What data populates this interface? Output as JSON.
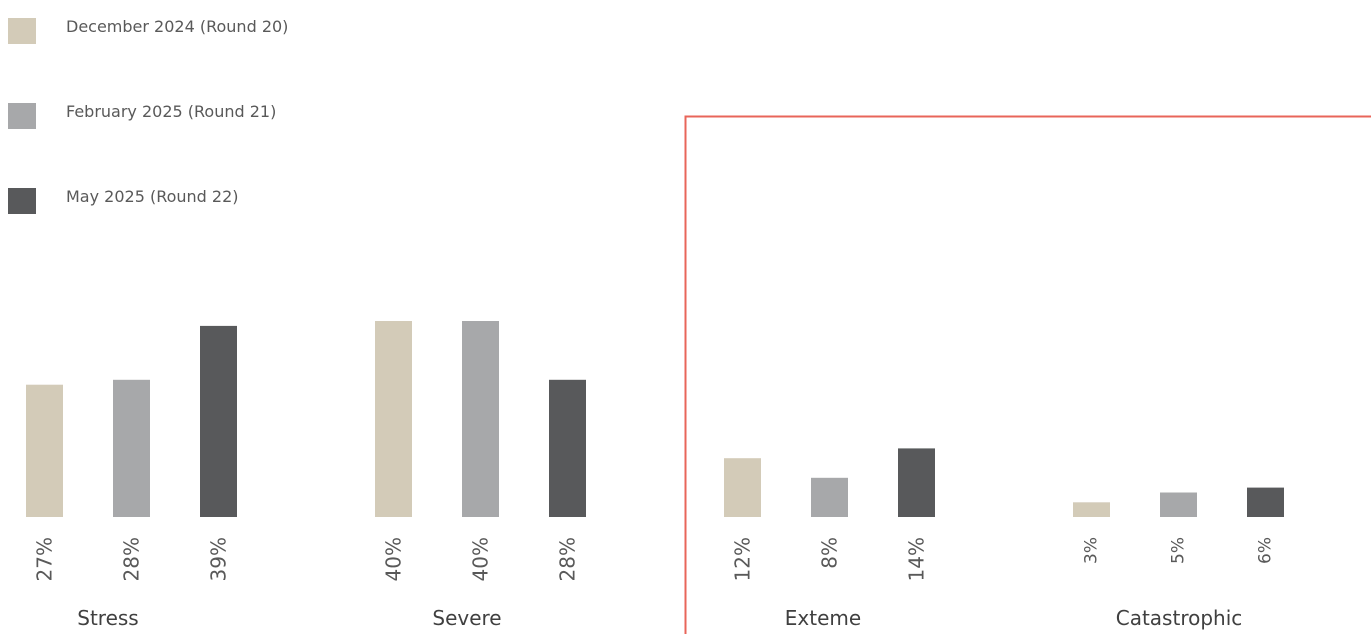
{
  "chart_data": {
    "type": "bar",
    "categories": [
      "Stress",
      "Severe",
      "Exteme",
      "Catastrophic"
    ],
    "series": [
      {
        "name": "December 2024 (Round 20)",
        "color": "#d3cbb8",
        "values": [
          27,
          40,
          12,
          3
        ]
      },
      {
        "name": "February 2025 (Round 21)",
        "color": "#a7a8aa",
        "values": [
          28,
          40,
          8,
          5
        ]
      },
      {
        "name": "May 2025 (Round 22)",
        "color": "#58595b",
        "values": [
          39,
          28,
          14,
          6
        ]
      }
    ],
    "value_suffix": "%",
    "value_labels": [
      [
        "27%",
        "40%",
        "12%",
        "3%"
      ],
      [
        "28%",
        "40%",
        "8%",
        "5%"
      ],
      [
        "39%",
        "28%",
        "14%",
        "6%"
      ]
    ],
    "legend_position": "top-left",
    "grid": false,
    "highlight_box": {
      "color": "#e8655a",
      "covers_categories": [
        "Exteme",
        "Catastrophic"
      ]
    }
  }
}
